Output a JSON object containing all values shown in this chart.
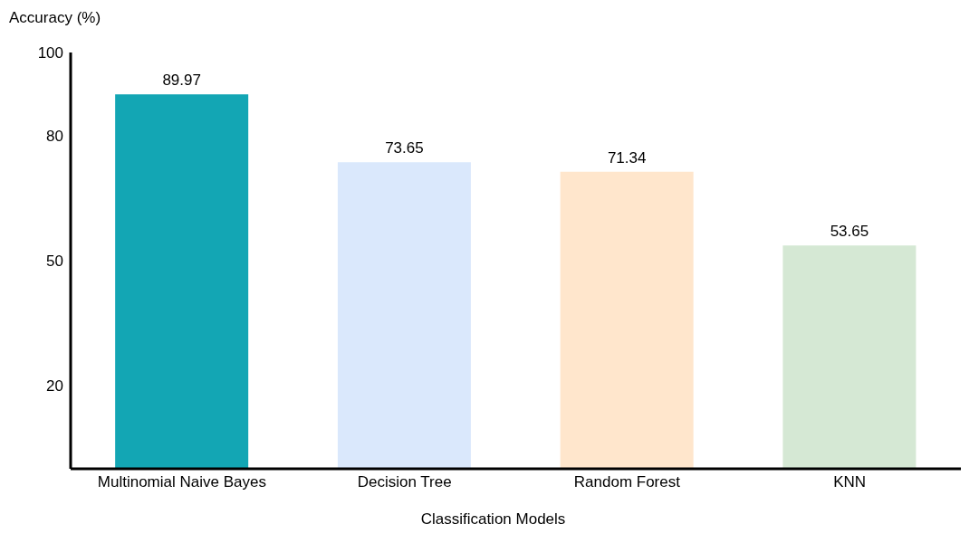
{
  "chart_data": {
    "type": "bar",
    "ylabel": "Accuracy (%)",
    "xlabel": "Classification Models",
    "categories": [
      "Multinomial Naive Bayes",
      "Decision Tree",
      "Random Forest",
      "KNN"
    ],
    "values": [
      89.97,
      73.65,
      71.34,
      53.65
    ],
    "colors": [
      "#13a6b4",
      "#dae8fc",
      "#ffe6cc",
      "#d5e8d4"
    ],
    "ylim": [
      0,
      100
    ],
    "yticks": [
      20,
      50,
      80,
      100
    ],
    "grid": false,
    "data_labels": true
  }
}
